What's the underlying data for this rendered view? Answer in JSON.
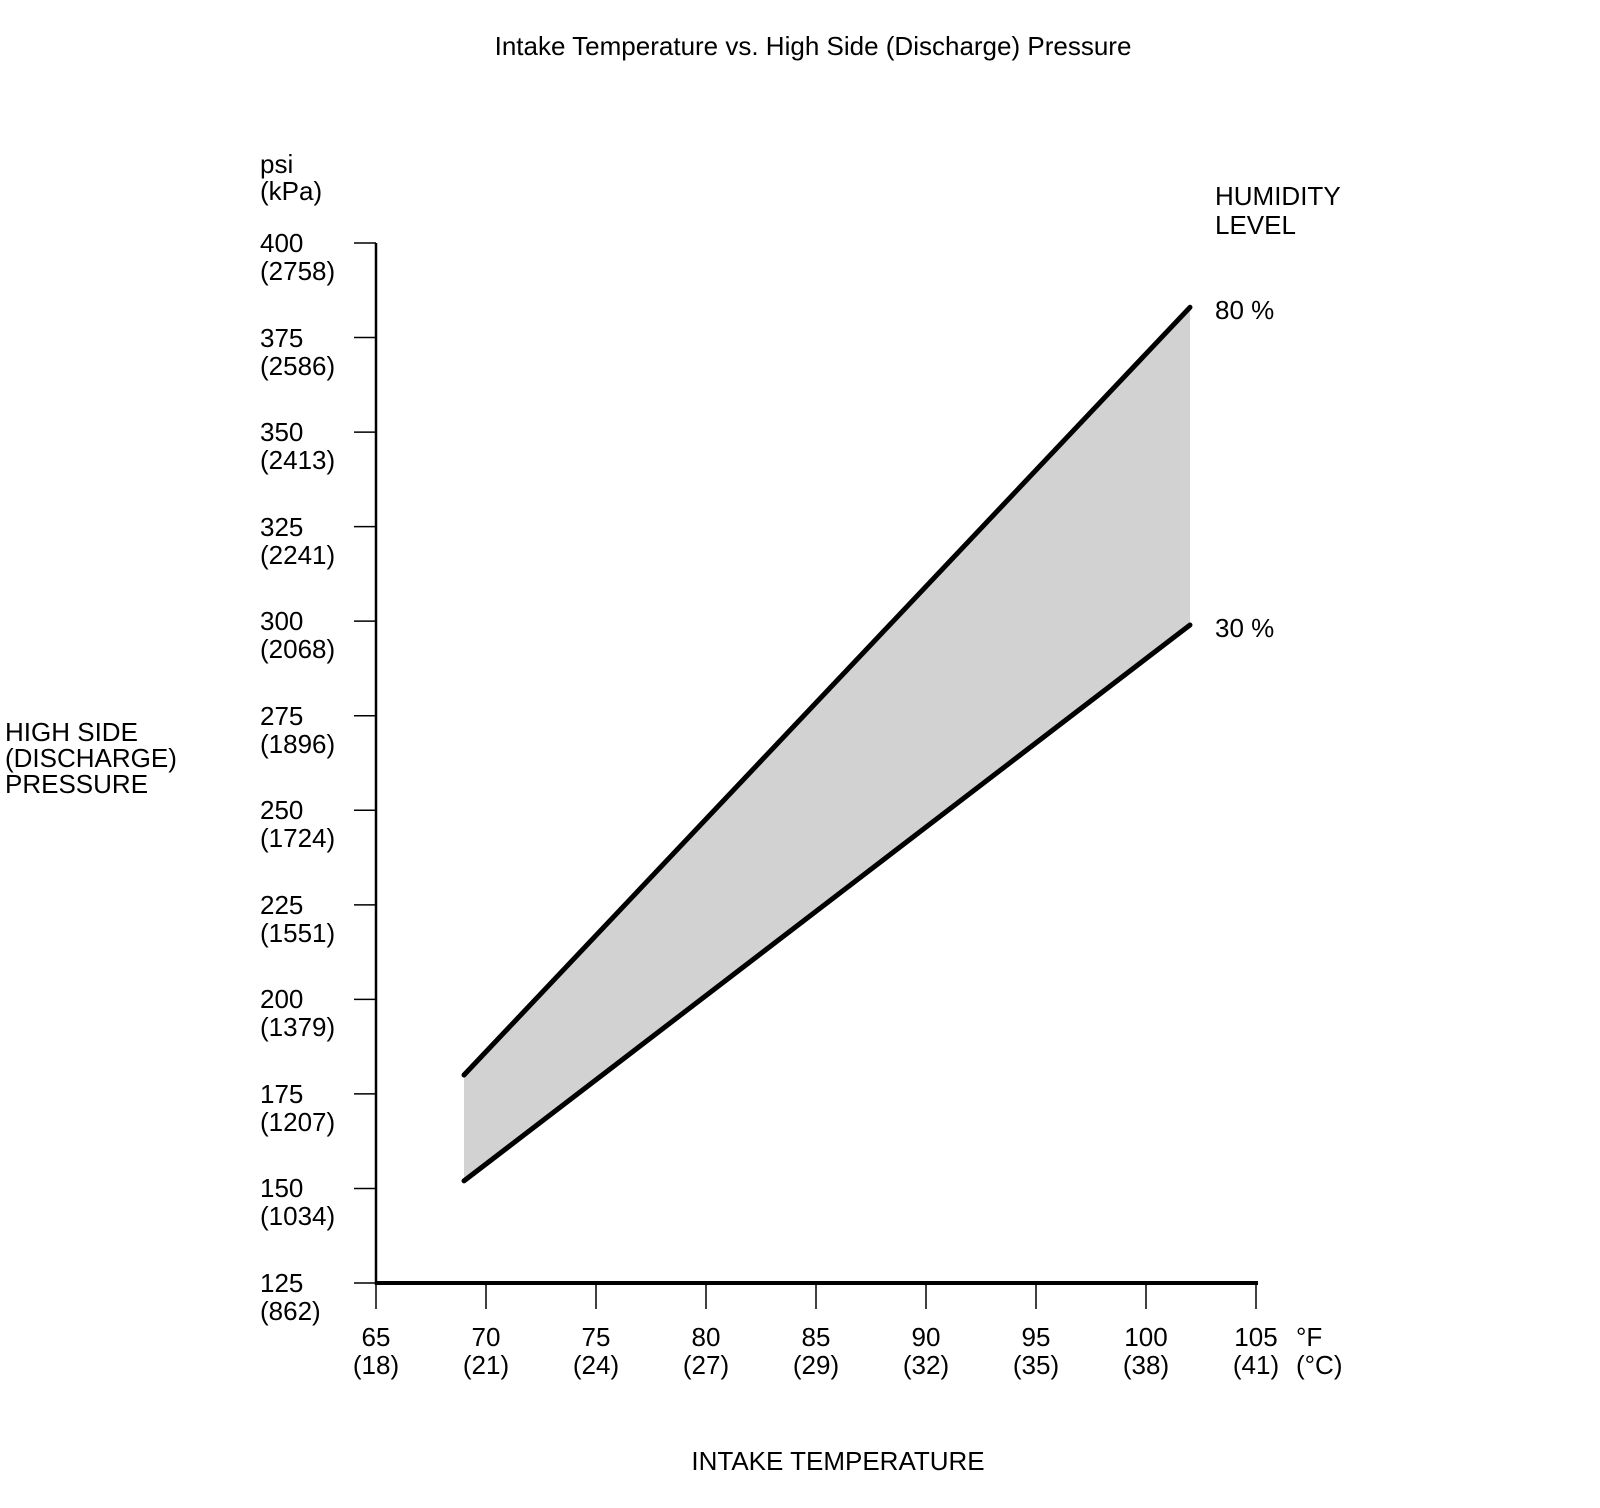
{
  "chart_data": {
    "type": "area",
    "title": "Intake Temperature vs. High Side (Discharge) Pressure",
    "grid": false,
    "x_axis": {
      "title": "INTAKE TEMPERATURE",
      "unit_primary": "°F",
      "unit_secondary": "(°C)",
      "range_f": [
        65,
        105
      ],
      "ticks": [
        {
          "f": 65,
          "c": 18
        },
        {
          "f": 70,
          "c": 21
        },
        {
          "f": 75,
          "c": 24
        },
        {
          "f": 80,
          "c": 27
        },
        {
          "f": 85,
          "c": 29
        },
        {
          "f": 90,
          "c": 32
        },
        {
          "f": 95,
          "c": 35
        },
        {
          "f": 100,
          "c": 38
        },
        {
          "f": 105,
          "c": 41
        }
      ]
    },
    "y_axis": {
      "title": "HIGH SIDE (DISCHARGE) PRESSURE",
      "title_lines": [
        "HIGH SIDE",
        "(DISCHARGE)",
        "PRESSURE"
      ],
      "unit_primary": "psi",
      "unit_secondary": "(kPa)",
      "range_psi": [
        125,
        400
      ],
      "ticks": [
        {
          "psi": 400,
          "kpa": 2758
        },
        {
          "psi": 375,
          "kpa": 2586
        },
        {
          "psi": 350,
          "kpa": 2413
        },
        {
          "psi": 325,
          "kpa": 2241
        },
        {
          "psi": 300,
          "kpa": 2068
        },
        {
          "psi": 275,
          "kpa": 1896
        },
        {
          "psi": 250,
          "kpa": 1724
        },
        {
          "psi": 225,
          "kpa": 1551
        },
        {
          "psi": 200,
          "kpa": 1379
        },
        {
          "psi": 175,
          "kpa": 1207
        },
        {
          "psi": 150,
          "kpa": 1034
        },
        {
          "psi": 125,
          "kpa": 862
        }
      ]
    },
    "legend": {
      "title": "HUMIDITY LEVEL",
      "title_lines": [
        "HUMIDITY",
        "LEVEL"
      ]
    },
    "series": [
      {
        "name": "80 %",
        "points_f_psi": [
          [
            69,
            180
          ],
          [
            102,
            383
          ]
        ]
      },
      {
        "name": "30 %",
        "points_f_psi": [
          [
            69,
            152
          ],
          [
            102,
            299
          ]
        ]
      }
    ],
    "band_fill": "#d2d2d2",
    "line_color": "#000000",
    "axis_color": "#000000"
  }
}
